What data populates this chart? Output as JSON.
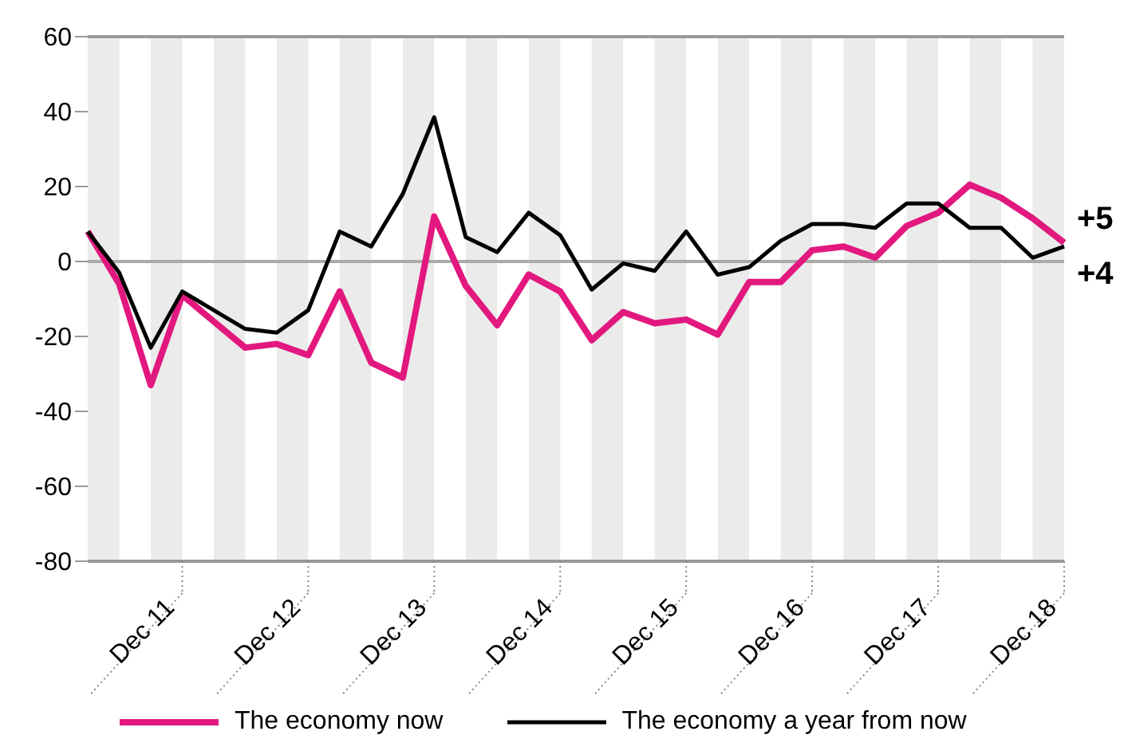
{
  "chart_data": {
    "type": "line",
    "categories": [
      null,
      null,
      null,
      "Dec 11",
      null,
      null,
      null,
      "Dec 12",
      null,
      null,
      null,
      "Dec 13",
      null,
      null,
      null,
      "Dec 14",
      null,
      null,
      null,
      "Dec 15",
      null,
      null,
      null,
      "Dec 16",
      null,
      null,
      null,
      "Dec 17",
      null,
      null,
      null,
      "Dec 18"
    ],
    "series": [
      {
        "name": "The economy now",
        "color": "#e2187f",
        "values": [
          8,
          -6,
          -33,
          -9,
          -16,
          -23,
          -22,
          -25,
          -8,
          -27,
          -31,
          12,
          -6.5,
          -17,
          -3.5,
          -8,
          -21,
          -13.5,
          -16.5,
          -15.5,
          -19.5,
          -5.5,
          -5.5,
          3,
          4,
          1,
          9.5,
          13,
          20.5,
          17,
          11.5,
          5
        ],
        "value_labels": [
          null,
          null,
          null,
          null,
          null,
          null,
          null,
          null,
          null,
          null,
          null,
          null,
          null,
          null,
          null,
          null,
          null,
          null,
          null,
          null,
          null,
          null,
          null,
          null,
          null,
          null,
          null,
          null,
          null,
          null,
          null,
          "+5"
        ]
      },
      {
        "name": "The economy a year from now",
        "color": "#000000",
        "values": [
          8,
          -3,
          -23,
          -8,
          -13,
          -18,
          -19,
          -13,
          8,
          4,
          18,
          38.5,
          6.5,
          2.5,
          13,
          7,
          -7.5,
          -0.5,
          -2.5,
          8,
          -3.5,
          -1.5,
          5.5,
          10,
          10,
          9,
          15.5,
          15.5,
          9,
          9,
          1,
          4
        ],
        "value_labels": [
          null,
          null,
          null,
          null,
          null,
          null,
          null,
          null,
          null,
          null,
          null,
          null,
          null,
          null,
          null,
          null,
          null,
          null,
          null,
          null,
          null,
          null,
          null,
          null,
          null,
          null,
          null,
          null,
          null,
          null,
          null,
          "+4"
        ]
      }
    ],
    "ylim": [
      -80,
      60
    ],
    "yticks": [
      -80,
      -60,
      -40,
      -20,
      0,
      20,
      40,
      60
    ],
    "ref_lines": [
      {
        "axis": "y",
        "value": 0,
        "label": null,
        "color": "#aaaaaa"
      }
    ],
    "grid": false,
    "legend": "bottom",
    "marker": "none",
    "line_style": "solid"
  }
}
